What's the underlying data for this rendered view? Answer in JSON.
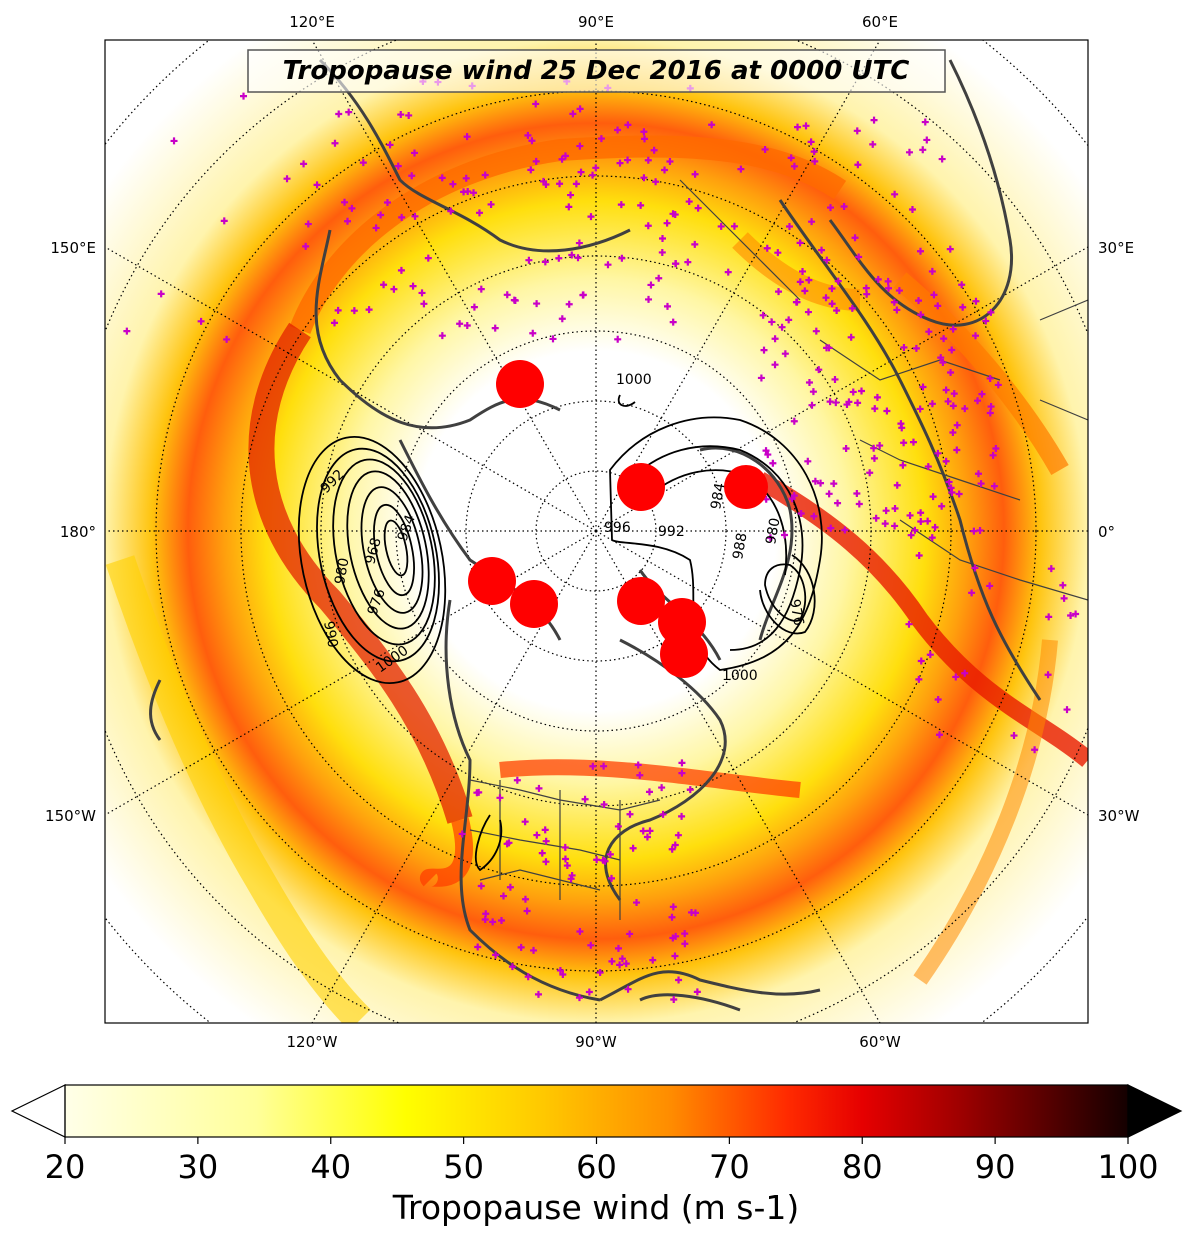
{
  "title": "Tropopause wind 25 Dec 2016 at 0000 UTC",
  "longitude_labels": {
    "top": [
      "120°E",
      "90°E",
      "60°E"
    ],
    "bottom": [
      "120°W",
      "90°W",
      "60°W"
    ],
    "left": [
      "150°E",
      "180°",
      "150°W"
    ],
    "right": [
      "30°E",
      "0°",
      "30°W"
    ]
  },
  "contour_labels": [
    "1000",
    "992",
    "984",
    "976",
    "968",
    "980",
    "990",
    "1000",
    "996",
    "992",
    "988",
    "984",
    "980",
    "976",
    "1000"
  ],
  "colorbar": {
    "label": "Tropopause wind (m s-1)",
    "ticks": [
      "20",
      "30",
      "40",
      "50",
      "60",
      "70",
      "80",
      "90",
      "100"
    ],
    "min": 20,
    "max": 100,
    "extend": "both",
    "colormap": "hot_r"
  },
  "markers": {
    "station_symbol": "plus",
    "station_color": "#c800c8",
    "highlight_color": "#ff0000",
    "highlight_count": 8
  }
}
